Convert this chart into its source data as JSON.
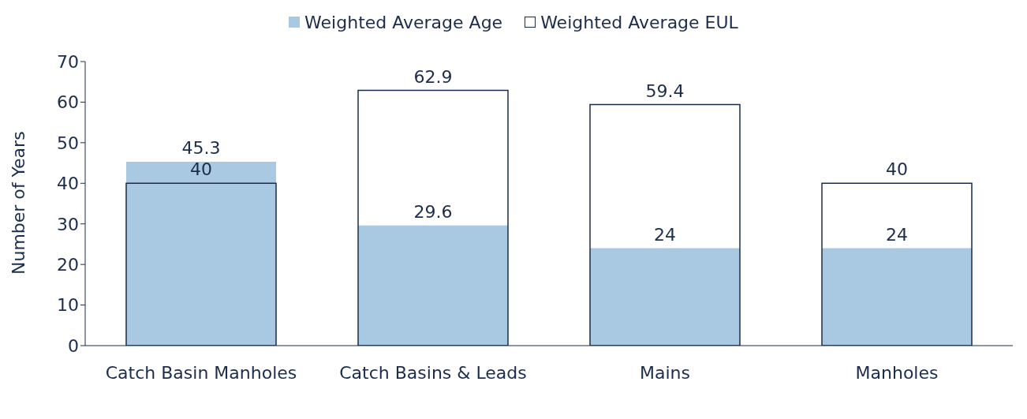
{
  "chart_data": {
    "type": "bar",
    "ylabel": "Number of Years",
    "categories": [
      "Catch Basin Manholes",
      "Catch Basins & Leads",
      "Mains",
      "Manholes"
    ],
    "series": [
      {
        "name": "Weighted Average Age",
        "color": "#a9c8e2",
        "values": [
          45.3,
          29.6,
          24,
          24
        ]
      },
      {
        "name": "Weighted Average EUL",
        "color": "#1b2c4d",
        "values": [
          40,
          62.9,
          59.4,
          40
        ]
      }
    ],
    "ylim": [
      0,
      70
    ],
    "yticks": [
      0,
      10,
      20,
      30,
      40,
      50,
      60,
      70
    ],
    "grid": false,
    "legend": "top",
    "data_labels": true
  }
}
